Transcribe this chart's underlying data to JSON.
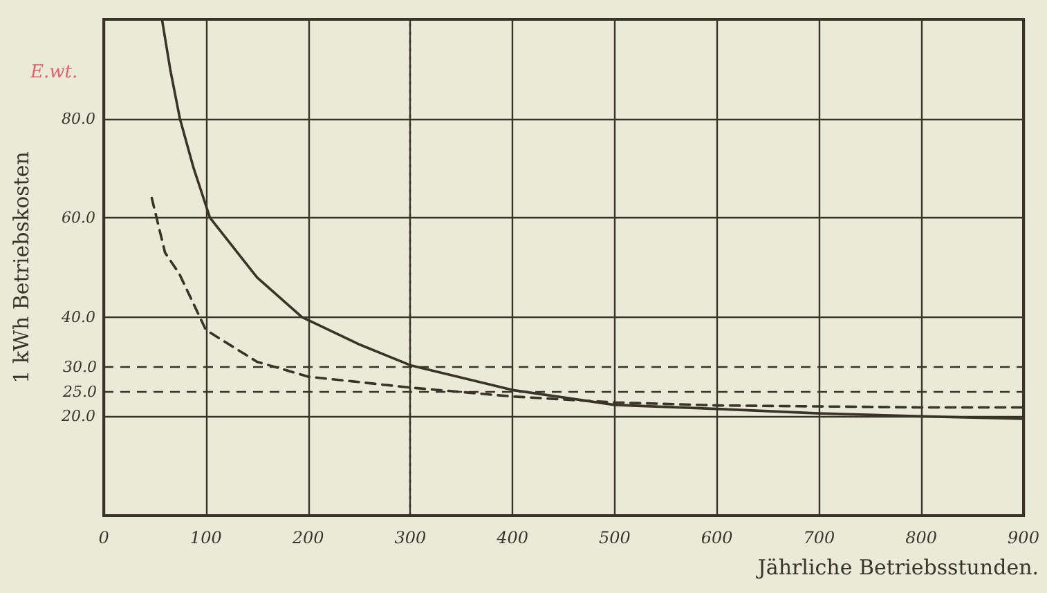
{
  "chart_data": {
    "type": "line",
    "xlabel": "Jährliche Betriebsstunden.",
    "ylabel": "1 kWh Betriebskosten",
    "annotations": [
      "E.wt."
    ],
    "xlim": [
      0,
      900
    ],
    "xticks": [
      0,
      100,
      200,
      300,
      400,
      500,
      600,
      700,
      800,
      900
    ],
    "ylim": [
      0,
      100
    ],
    "yticks": [
      {
        "value": 20,
        "label": "20.0"
      },
      {
        "value": 40,
        "label": "40.0"
      },
      {
        "value": 60,
        "label": "60.0"
      },
      {
        "value": 80,
        "label": "80.0"
      }
    ],
    "grid": true,
    "ref_lines": [
      {
        "axis": "y",
        "value": 30,
        "label": "30.0",
        "line_style": "dashed"
      },
      {
        "axis": "y",
        "value": 25,
        "label": "25.0",
        "line_style": "dashed"
      },
      {
        "axis": "x",
        "value": 300,
        "label": null,
        "line_style": "dotted"
      }
    ],
    "series": [
      {
        "color": "#3a3328",
        "line_style": "solid",
        "x": [
          57,
          65,
          74.5,
          88,
          104,
          150,
          194,
          250,
          300,
          400,
          500,
          600,
          700,
          800,
          900
        ],
        "values": [
          100,
          90,
          80,
          70,
          60,
          48,
          40,
          34.5,
          30.3,
          25.3,
          22.3,
          21.5,
          20.6,
          20,
          19.5
        ]
      },
      {
        "color": "#3a3328",
        "line_style": "dashed",
        "x": [
          47,
          60,
          74,
          100,
          150,
          200,
          300,
          400,
          500,
          600,
          700,
          800,
          900
        ],
        "values": [
          64,
          53,
          48.7,
          37.4,
          31,
          28,
          25.8,
          24,
          22.8,
          22.2,
          22,
          21.8,
          21.8
        ]
      }
    ]
  }
}
